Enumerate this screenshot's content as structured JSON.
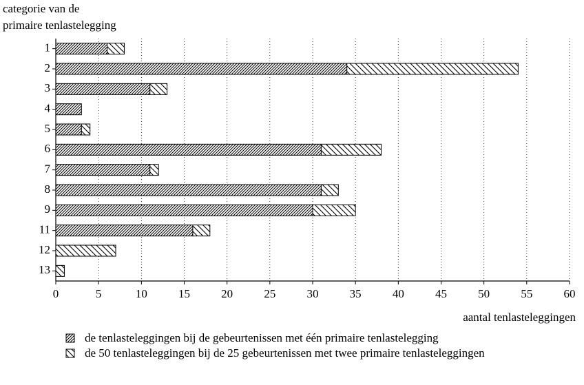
{
  "chart_data": {
    "type": "stacked_barh",
    "y_label": [
      "categorie van de",
      "primaire tenlastelegging"
    ],
    "x_label": "aantal tenlasteleggingen",
    "categories": [
      "1",
      "2",
      "3",
      "4",
      "5",
      "6",
      "7",
      "8",
      "9",
      "11",
      "12",
      "13"
    ],
    "series": [
      {
        "name": "de tenlasteleggingen bij de gebeurtenissen met één primaire tenlastelegging",
        "color": "#000000",
        "pattern": "dense",
        "values": [
          6,
          34,
          11,
          3,
          3,
          31,
          11,
          31,
          30,
          16,
          0,
          0
        ]
      },
      {
        "name": "de 50 tenlasteleggingen bij de 25 gebeurtenissen met twee primaire tenlasteleggingen",
        "color": "#000000",
        "pattern": "sparse",
        "values": [
          2,
          20,
          2,
          0,
          1,
          7,
          1,
          2,
          5,
          2,
          7,
          1
        ]
      }
    ],
    "xlim": [
      0,
      60
    ],
    "xticks": [
      0,
      5,
      10,
      15,
      20,
      25,
      30,
      35,
      40,
      45,
      50,
      55,
      60
    ],
    "grid": true
  }
}
